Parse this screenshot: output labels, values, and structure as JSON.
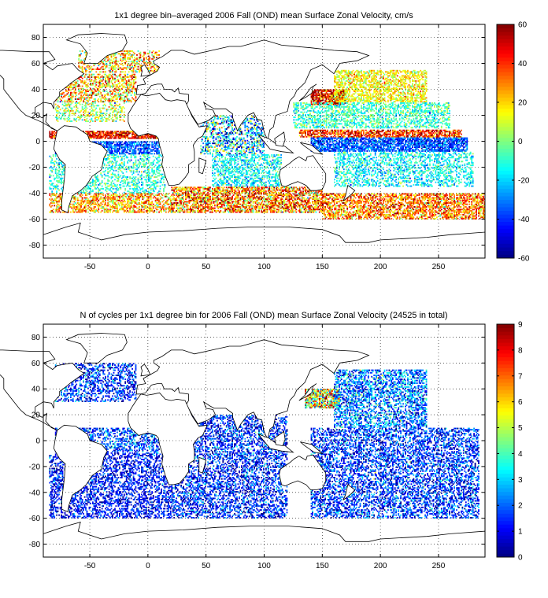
{
  "chart_data": [
    {
      "type": "heatmap",
      "title": "1x1 degree bin–averaged 2006 Fall (OND) mean Surface Zonal Velocity, cm/s",
      "xlabel": "",
      "ylabel": "",
      "xlim": [
        -90,
        290
      ],
      "ylim": [
        -90,
        90
      ],
      "xticks": [
        -50,
        0,
        50,
        100,
        150,
        200,
        250
      ],
      "yticks": [
        -80,
        -60,
        -40,
        -20,
        0,
        20,
        40,
        60,
        80
      ],
      "grid": true,
      "colorbar": {
        "min": -60,
        "max": 60,
        "ticks": [
          60,
          40,
          20,
          0,
          -20,
          -40,
          -60
        ],
        "colormap": "jet"
      },
      "field_bands": [
        {
          "lat": [
            53,
            70
          ],
          "lon": [
            -60,
            10
          ],
          "mean": 20,
          "spread": 18,
          "density": 0.4
        },
        {
          "lat": [
            30,
            52
          ],
          "lon": [
            -80,
            -10
          ],
          "mean": 22,
          "spread": 20,
          "density": 0.45
        },
        {
          "lat": [
            15,
            30
          ],
          "lon": [
            -80,
            -20
          ],
          "mean": 5,
          "spread": 15,
          "density": 0.35
        },
        {
          "lat": [
            2,
            8
          ],
          "lon": [
            -85,
            10
          ],
          "mean": 45,
          "spread": 15,
          "density": 0.8
        },
        {
          "lat": [
            -10,
            0
          ],
          "lon": [
            -80,
            10
          ],
          "mean": -35,
          "spread": 10,
          "density": 0.7
        },
        {
          "lat": [
            -40,
            -10
          ],
          "lon": [
            -85,
            15
          ],
          "mean": -10,
          "spread": 10,
          "density": 0.35
        },
        {
          "lat": [
            -55,
            -40
          ],
          "lon": [
            -85,
            20
          ],
          "mean": 25,
          "spread": 15,
          "density": 0.55
        },
        {
          "lat": [
            -10,
            20
          ],
          "lon": [
            45,
            100
          ],
          "mean": -20,
          "spread": 25,
          "density": 0.4
        },
        {
          "lat": [
            -35,
            -10
          ],
          "lon": [
            55,
            115
          ],
          "mean": -15,
          "spread": 10,
          "density": 0.45
        },
        {
          "lat": [
            -55,
            -35
          ],
          "lon": [
            20,
            150
          ],
          "mean": 30,
          "spread": 20,
          "density": 0.65
        },
        {
          "lat": [
            28,
            40
          ],
          "lon": [
            140,
            170
          ],
          "mean": 45,
          "spread": 20,
          "density": 0.8
        },
        {
          "lat": [
            30,
            55
          ],
          "lon": [
            160,
            240
          ],
          "mean": 15,
          "spread": 10,
          "density": 0.55
        },
        {
          "lat": [
            10,
            30
          ],
          "lon": [
            125,
            260
          ],
          "mean": -8,
          "spread": 10,
          "density": 0.45
        },
        {
          "lat": [
            3,
            9
          ],
          "lon": [
            130,
            270
          ],
          "mean": 40,
          "spread": 15,
          "density": 0.7
        },
        {
          "lat": [
            -8,
            3
          ],
          "lon": [
            140,
            275
          ],
          "mean": -35,
          "spread": 10,
          "density": 0.75
        },
        {
          "lat": [
            -35,
            -8
          ],
          "lon": [
            160,
            280
          ],
          "mean": -15,
          "spread": 10,
          "density": 0.4
        },
        {
          "lat": [
            -60,
            -40
          ],
          "lon": [
            150,
            290
          ],
          "mean": 30,
          "spread": 15,
          "density": 0.6
        }
      ]
    },
    {
      "type": "heatmap",
      "title": "N of cycles per 1x1 degree bin for 2006 Fall (OND) mean Surface Zonal Velocity (24525 in total)",
      "xlabel": "",
      "ylabel": "",
      "xlim": [
        -90,
        290
      ],
      "ylim": [
        -90,
        90
      ],
      "xticks": [
        -50,
        0,
        50,
        100,
        150,
        200,
        250
      ],
      "yticks": [
        -80,
        -60,
        -40,
        -20,
        0,
        20,
        40,
        60,
        80
      ],
      "grid": true,
      "colorbar": {
        "min": 0,
        "max": 9,
        "ticks": [
          9,
          8,
          7,
          6,
          5,
          4,
          3,
          2,
          1,
          0
        ],
        "colormap": "jet"
      },
      "field_bands": [
        {
          "lat": [
            30,
            60
          ],
          "lon": [
            -80,
            -10
          ],
          "mean": 1.5,
          "spread": 1.0,
          "density": 0.4
        },
        {
          "lat": [
            -10,
            10
          ],
          "lon": [
            -80,
            10
          ],
          "mean": 1.8,
          "spread": 1.0,
          "density": 0.45
        },
        {
          "lat": [
            -60,
            -10
          ],
          "lon": [
            -85,
            20
          ],
          "mean": 1.2,
          "spread": 0.8,
          "density": 0.45
        },
        {
          "lat": [
            -60,
            20
          ],
          "lon": [
            20,
            120
          ],
          "mean": 1.4,
          "spread": 1.0,
          "density": 0.45
        },
        {
          "lat": [
            25,
            40
          ],
          "lon": [
            135,
            165
          ],
          "mean": 5.5,
          "spread": 2.0,
          "density": 0.75
        },
        {
          "lat": [
            10,
            55
          ],
          "lon": [
            160,
            240
          ],
          "mean": 2.2,
          "spread": 1.2,
          "density": 0.5
        },
        {
          "lat": [
            -60,
            10
          ],
          "lon": [
            140,
            285
          ],
          "mean": 1.5,
          "spread": 1.0,
          "density": 0.45
        }
      ]
    }
  ]
}
